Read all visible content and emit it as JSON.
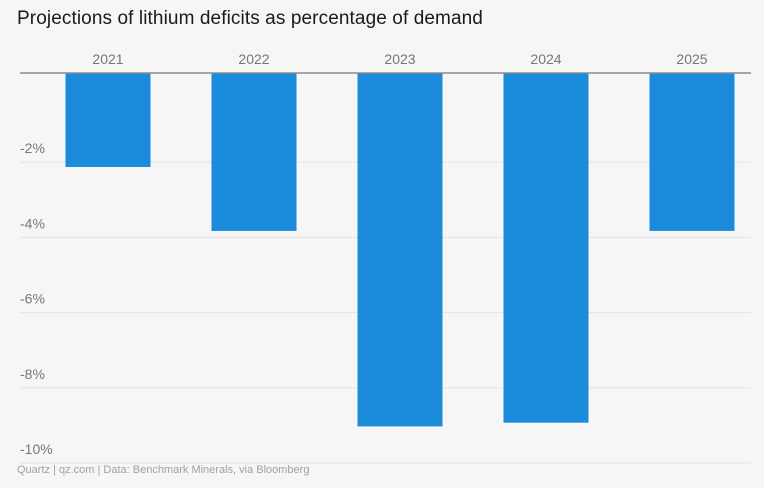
{
  "title": "Projections of lithium deficits as percentage of demand",
  "source": "Quartz | qz.com | Data: Benchmark Minerals, via Bloomberg",
  "colors": {
    "bar": "#1a8cdb",
    "grid": "#e4e4e4",
    "zero_line": "#8c8c8c",
    "text": "#777777",
    "background": "#f6f6f6"
  },
  "chart_data": {
    "type": "bar",
    "categories": [
      "2021",
      "2022",
      "2023",
      "2024",
      "2025"
    ],
    "values": [
      -2.5,
      -4.2,
      -9.4,
      -9.3,
      -4.2
    ],
    "y_ticks": [
      -2,
      -4,
      -6,
      -8,
      -10
    ],
    "y_tick_labels": [
      "-2%",
      "-4%",
      "-6%",
      "-8%",
      "-10%"
    ],
    "ylim": [
      -10.4,
      0
    ],
    "xlabel": "",
    "ylabel": "",
    "category_axis_position": "top",
    "grid": true,
    "legend": false
  }
}
